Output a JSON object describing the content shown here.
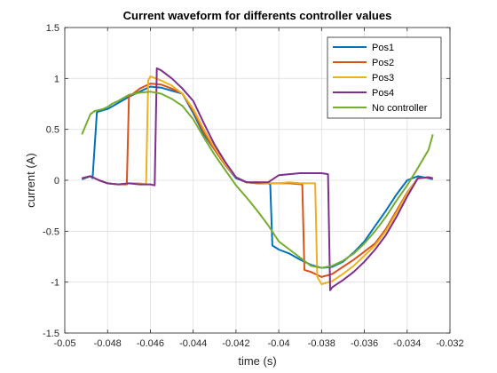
{
  "chart_data": {
    "type": "line",
    "title": "Current waveform for differents controller values",
    "xlabel": "time (s)",
    "ylabel": "current (A)",
    "xlim": [
      -0.05,
      -0.032
    ],
    "ylim": [
      -1.5,
      1.5
    ],
    "x_ticks": [
      -0.05,
      -0.048,
      -0.046,
      -0.044,
      -0.042,
      -0.04,
      -0.038,
      -0.036,
      -0.034,
      -0.032
    ],
    "x_tick_labels": [
      "-0.05",
      "-0.048",
      "-0.046",
      "-0.044",
      "-0.042",
      "-0.04",
      "-0.038",
      "-0.036",
      "-0.034",
      "-0.032"
    ],
    "y_ticks": [
      -1.5,
      -1,
      -0.5,
      0,
      0.5,
      1,
      1.5
    ],
    "y_tick_labels": [
      "-1.5",
      "-1",
      "-0.5",
      "0",
      "0.5",
      "1",
      "1.5"
    ],
    "grid": true,
    "legend_position": "top-right",
    "series": [
      {
        "name": "Pos1",
        "color": "#0072BD",
        "x": [
          -0.0492,
          -0.0488,
          -0.0487,
          -0.0485,
          -0.048,
          -0.0475,
          -0.047,
          -0.0465,
          -0.046,
          -0.0455,
          -0.045,
          -0.0445,
          -0.044,
          -0.0435,
          -0.043,
          -0.0425,
          -0.042,
          -0.0415,
          -0.041,
          -0.0405,
          -0.0404,
          -0.0403,
          -0.04,
          -0.0395,
          -0.039,
          -0.0385,
          -0.038,
          -0.0375,
          -0.037,
          -0.0365,
          -0.036,
          -0.0355,
          -0.035,
          -0.0345,
          -0.034,
          -0.0335,
          -0.033,
          -0.0328
        ],
        "y": [
          0.01,
          0.04,
          0.02,
          0.67,
          0.7,
          0.76,
          0.82,
          0.87,
          0.92,
          0.91,
          0.88,
          0.85,
          0.66,
          0.45,
          0.3,
          0.15,
          0.02,
          -0.02,
          -0.03,
          -0.03,
          -0.04,
          -0.64,
          -0.68,
          -0.72,
          -0.78,
          -0.83,
          -0.86,
          -0.85,
          -0.8,
          -0.71,
          -0.6,
          -0.45,
          -0.3,
          -0.14,
          0.0,
          0.04,
          0.02,
          0.01
        ]
      },
      {
        "name": "Pos2",
        "color": "#D95319",
        "x": [
          -0.0492,
          -0.0488,
          -0.0484,
          -0.048,
          -0.0475,
          -0.0471,
          -0.047,
          -0.0465,
          -0.046,
          -0.0455,
          -0.045,
          -0.0445,
          -0.044,
          -0.0435,
          -0.043,
          -0.0425,
          -0.042,
          -0.0415,
          -0.041,
          -0.0405,
          -0.04,
          -0.0395,
          -0.0389,
          -0.0388,
          -0.0385,
          -0.038,
          -0.0375,
          -0.037,
          -0.0365,
          -0.036,
          -0.0355,
          -0.035,
          -0.0345,
          -0.034,
          -0.0335,
          -0.033,
          -0.0328
        ],
        "y": [
          0.02,
          0.04,
          0.0,
          -0.03,
          -0.04,
          -0.04,
          0.82,
          0.9,
          0.95,
          0.94,
          0.9,
          0.85,
          0.68,
          0.47,
          0.3,
          0.15,
          0.03,
          -0.02,
          -0.03,
          -0.03,
          -0.03,
          -0.03,
          -0.04,
          -0.88,
          -0.9,
          -0.95,
          -0.92,
          -0.85,
          -0.78,
          -0.7,
          -0.62,
          -0.48,
          -0.3,
          -0.12,
          0.02,
          0.03,
          0.02
        ]
      },
      {
        "name": "Pos3",
        "color": "#EDB120",
        "x": [
          -0.0492,
          -0.0488,
          -0.0484,
          -0.048,
          -0.0475,
          -0.047,
          -0.0465,
          -0.0462,
          -0.0461,
          -0.046,
          -0.0455,
          -0.045,
          -0.0445,
          -0.044,
          -0.0435,
          -0.043,
          -0.0425,
          -0.042,
          -0.0415,
          -0.041,
          -0.0405,
          -0.04,
          -0.0395,
          -0.039,
          -0.0385,
          -0.0383,
          -0.0382,
          -0.038,
          -0.0375,
          -0.037,
          -0.0365,
          -0.036,
          -0.0355,
          -0.035,
          -0.0345,
          -0.034,
          -0.0335,
          -0.033,
          -0.0328
        ],
        "y": [
          0.02,
          0.04,
          0.0,
          -0.03,
          -0.04,
          -0.03,
          -0.03,
          -0.04,
          0.98,
          1.02,
          0.98,
          0.93,
          0.85,
          0.7,
          0.5,
          0.32,
          0.16,
          0.03,
          -0.02,
          -0.02,
          -0.03,
          -0.03,
          -0.02,
          -0.03,
          -0.03,
          -0.03,
          -0.95,
          -1.02,
          -0.99,
          -0.92,
          -0.84,
          -0.74,
          -0.64,
          -0.5,
          -0.32,
          -0.13,
          0.02,
          0.03,
          0.02
        ]
      },
      {
        "name": "Pos4",
        "color": "#7E2F8E",
        "x": [
          -0.0492,
          -0.0488,
          -0.0484,
          -0.048,
          -0.0475,
          -0.047,
          -0.0465,
          -0.046,
          -0.0458,
          -0.0457,
          -0.0455,
          -0.045,
          -0.0445,
          -0.044,
          -0.0435,
          -0.043,
          -0.0425,
          -0.042,
          -0.0415,
          -0.041,
          -0.0405,
          -0.04,
          -0.0395,
          -0.039,
          -0.0385,
          -0.038,
          -0.0377,
          -0.0376,
          -0.0375,
          -0.037,
          -0.0365,
          -0.036,
          -0.0355,
          -0.035,
          -0.0345,
          -0.034,
          -0.0335,
          -0.033,
          -0.0328
        ],
        "y": [
          0.02,
          0.04,
          0.0,
          -0.03,
          -0.04,
          -0.03,
          -0.04,
          -0.04,
          -0.05,
          1.1,
          1.08,
          1.0,
          0.9,
          0.78,
          0.56,
          0.35,
          0.18,
          0.03,
          -0.02,
          -0.02,
          -0.02,
          0.05,
          0.06,
          0.07,
          0.07,
          0.07,
          0.06,
          -1.08,
          -1.05,
          -0.98,
          -0.9,
          -0.8,
          -0.68,
          -0.54,
          -0.36,
          -0.16,
          0.02,
          0.03,
          0.02
        ]
      },
      {
        "name": "No controller",
        "color": "#77AC30",
        "x": [
          -0.0492,
          -0.049,
          -0.0488,
          -0.0486,
          -0.0484,
          -0.0482,
          -0.048,
          -0.0478,
          -0.0475,
          -0.047,
          -0.0465,
          -0.046,
          -0.0455,
          -0.045,
          -0.0445,
          -0.044,
          -0.0435,
          -0.043,
          -0.0425,
          -0.042,
          -0.0415,
          -0.041,
          -0.0405,
          -0.04,
          -0.0395,
          -0.039,
          -0.0385,
          -0.038,
          -0.0375,
          -0.037,
          -0.0365,
          -0.036,
          -0.0355,
          -0.035,
          -0.0345,
          -0.034,
          -0.0335,
          -0.033,
          -0.0328
        ],
        "y": [
          0.45,
          0.55,
          0.65,
          0.68,
          0.69,
          0.7,
          0.72,
          0.75,
          0.78,
          0.84,
          0.86,
          0.87,
          0.85,
          0.8,
          0.73,
          0.6,
          0.42,
          0.25,
          0.1,
          -0.05,
          -0.17,
          -0.3,
          -0.44,
          -0.6,
          -0.68,
          -0.76,
          -0.84,
          -0.86,
          -0.84,
          -0.79,
          -0.72,
          -0.62,
          -0.5,
          -0.36,
          -0.2,
          -0.05,
          0.12,
          0.3,
          0.45
        ]
      }
    ]
  }
}
